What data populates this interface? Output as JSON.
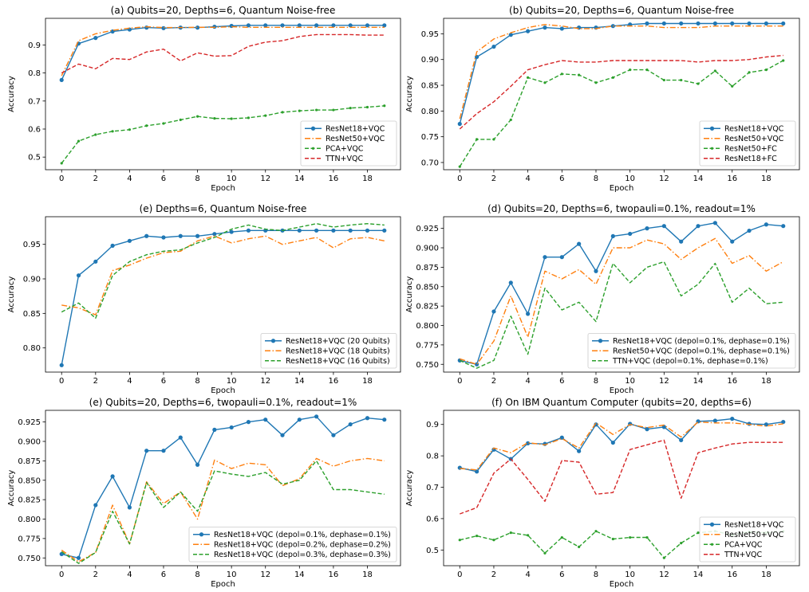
{
  "chart_data": [
    {
      "type": "line",
      "title": "(a) Qubits=20, Depths=6, Quantum Noise-free",
      "xlabel": "Epoch",
      "ylabel": "Accuracy",
      "xlim": [
        -0.95,
        19.95
      ],
      "ylim": [
        0.455,
        0.995
      ],
      "xticks": [
        0,
        2,
        4,
        6,
        8,
        10,
        12,
        14,
        16,
        18
      ],
      "yticks": [
        0.5,
        0.6,
        0.7,
        0.8,
        0.9
      ],
      "ytick_labels": [
        "0.5",
        "0.6",
        "0.7",
        "0.8",
        "0.9"
      ],
      "grid": false,
      "legend": "lower-right",
      "x": [
        0,
        1,
        2,
        3,
        4,
        5,
        6,
        7,
        8,
        9,
        10,
        11,
        12,
        13,
        14,
        15,
        16,
        17,
        18,
        19
      ],
      "series": [
        {
          "name": "ResNet18+VQC",
          "color": "#1f77b4",
          "style": "solid",
          "marker": "o",
          "values": [
            0.775,
            0.905,
            0.925,
            0.948,
            0.955,
            0.962,
            0.96,
            0.962,
            0.962,
            0.965,
            0.968,
            0.97,
            0.97,
            0.97,
            0.97,
            0.97,
            0.97,
            0.97,
            0.97,
            0.97
          ]
        },
        {
          "name": "ResNet50+VQC",
          "color": "#ff7f0e",
          "style": "dashdot",
          "marker": "",
          "values": [
            0.79,
            0.915,
            0.94,
            0.952,
            0.96,
            0.965,
            0.962,
            0.962,
            0.963,
            0.963,
            0.965,
            0.963,
            0.963,
            0.963,
            0.963,
            0.963,
            0.963,
            0.963,
            0.963,
            0.963
          ]
        },
        {
          "name": "PCA+VQC",
          "color": "#2ca02c",
          "style": "dashed",
          "marker": ".",
          "values": [
            0.478,
            0.557,
            0.58,
            0.592,
            0.598,
            0.612,
            0.62,
            0.633,
            0.645,
            0.638,
            0.637,
            0.64,
            0.648,
            0.66,
            0.665,
            0.668,
            0.668,
            0.675,
            0.678,
            0.683
          ]
        },
        {
          "name": "TTN+VQC",
          "color": "#d62728",
          "style": "dashed",
          "marker": "",
          "values": [
            0.8,
            0.832,
            0.815,
            0.852,
            0.848,
            0.875,
            0.885,
            0.843,
            0.872,
            0.86,
            0.862,
            0.895,
            0.91,
            0.915,
            0.93,
            0.937,
            0.937,
            0.937,
            0.935,
            0.935
          ]
        }
      ]
    },
    {
      "type": "line",
      "title": "(b) Qubits=20, Depths=6, Quantum Noise-free",
      "xlabel": "Epoch",
      "ylabel": "Accuracy",
      "xlim": [
        -0.95,
        19.95
      ],
      "ylim": [
        0.686,
        0.98
      ],
      "xticks": [
        0,
        2,
        4,
        6,
        8,
        10,
        12,
        14,
        16,
        18
      ],
      "yticks": [
        0.7,
        0.75,
        0.8,
        0.85,
        0.9,
        0.95
      ],
      "ytick_labels": [
        "0.70",
        "0.75",
        "0.80",
        "0.85",
        "0.90",
        "0.95"
      ],
      "grid": false,
      "legend": "lower-right",
      "x": [
        0,
        1,
        2,
        3,
        4,
        5,
        6,
        7,
        8,
        9,
        10,
        11,
        12,
        13,
        14,
        15,
        16,
        17,
        18,
        19
      ],
      "series": [
        {
          "name": "ResNet18+VQC",
          "color": "#1f77b4",
          "style": "solid",
          "marker": "o",
          "values": [
            0.775,
            0.905,
            0.925,
            0.948,
            0.955,
            0.962,
            0.96,
            0.962,
            0.962,
            0.965,
            0.968,
            0.97,
            0.97,
            0.97,
            0.97,
            0.97,
            0.97,
            0.97,
            0.97,
            0.97
          ]
        },
        {
          "name": "ResNet50+VQC",
          "color": "#ff7f0e",
          "style": "dashdot",
          "marker": "",
          "values": [
            0.785,
            0.915,
            0.94,
            0.952,
            0.962,
            0.968,
            0.965,
            0.96,
            0.96,
            0.965,
            0.965,
            0.965,
            0.962,
            0.962,
            0.962,
            0.965,
            0.965,
            0.965,
            0.965,
            0.965
          ]
        },
        {
          "name": "ResNet50+FC",
          "color": "#2ca02c",
          "style": "dashed",
          "marker": ".",
          "values": [
            0.692,
            0.745,
            0.745,
            0.783,
            0.865,
            0.855,
            0.872,
            0.87,
            0.855,
            0.865,
            0.88,
            0.88,
            0.86,
            0.86,
            0.853,
            0.878,
            0.848,
            0.875,
            0.88,
            0.898
          ]
        },
        {
          "name": "ResNet18+FC",
          "color": "#d62728",
          "style": "dashed",
          "marker": "",
          "values": [
            0.765,
            0.795,
            0.818,
            0.848,
            0.88,
            0.89,
            0.898,
            0.895,
            0.895,
            0.898,
            0.898,
            0.898,
            0.898,
            0.898,
            0.895,
            0.898,
            0.898,
            0.9,
            0.905,
            0.908
          ]
        }
      ]
    },
    {
      "type": "line",
      "title": "(e) Depths=6, Quantum Noise-free",
      "xlabel": "Epoch",
      "ylabel": "Accuracy",
      "xlim": [
        -0.95,
        19.95
      ],
      "ylim": [
        0.765,
        0.99
      ],
      "xticks": [
        0,
        2,
        4,
        6,
        8,
        10,
        12,
        14,
        16,
        18
      ],
      "yticks": [
        0.8,
        0.85,
        0.9,
        0.95
      ],
      "ytick_labels": [
        "0.80",
        "0.85",
        "0.90",
        "0.95"
      ],
      "grid": false,
      "legend": "lower-right",
      "x": [
        0,
        1,
        2,
        3,
        4,
        5,
        6,
        7,
        8,
        9,
        10,
        11,
        12,
        13,
        14,
        15,
        16,
        17,
        18,
        19
      ],
      "series": [
        {
          "name": "ResNet18+VQC (20 Qubits)",
          "color": "#1f77b4",
          "style": "solid",
          "marker": "o",
          "values": [
            0.775,
            0.905,
            0.925,
            0.948,
            0.955,
            0.962,
            0.96,
            0.962,
            0.962,
            0.965,
            0.968,
            0.97,
            0.97,
            0.97,
            0.97,
            0.97,
            0.97,
            0.97,
            0.97,
            0.97
          ]
        },
        {
          "name": "ResNet18+VQC (18 Qubits)",
          "color": "#ff7f0e",
          "style": "dashdot",
          "marker": "",
          "values": [
            0.862,
            0.858,
            0.848,
            0.912,
            0.92,
            0.93,
            0.938,
            0.94,
            0.955,
            0.962,
            0.952,
            0.958,
            0.962,
            0.95,
            0.955,
            0.96,
            0.945,
            0.958,
            0.96,
            0.955
          ]
        },
        {
          "name": "ResNet18+VQC (16 Qubits)",
          "color": "#2ca02c",
          "style": "dashed",
          "marker": "",
          "values": [
            0.852,
            0.865,
            0.843,
            0.905,
            0.925,
            0.935,
            0.94,
            0.942,
            0.952,
            0.96,
            0.972,
            0.978,
            0.972,
            0.97,
            0.975,
            0.98,
            0.975,
            0.978,
            0.98,
            0.978
          ]
        }
      ]
    },
    {
      "type": "line",
      "title": "(d) Qubits=20, Depths=6, twopauli=0.1%, readout=1%",
      "xlabel": "Epoch",
      "ylabel": "Accuracy",
      "xlim": [
        -0.95,
        19.95
      ],
      "ylim": [
        0.74,
        0.94
      ],
      "xticks": [
        0,
        2,
        4,
        6,
        8,
        10,
        12,
        14,
        16,
        18
      ],
      "yticks": [
        0.75,
        0.775,
        0.8,
        0.825,
        0.85,
        0.875,
        0.9,
        0.925
      ],
      "ytick_labels": [
        "0.750",
        "0.775",
        "0.800",
        "0.825",
        "0.850",
        "0.875",
        "0.900",
        "0.925"
      ],
      "grid": false,
      "legend": "lower-right",
      "x": [
        0,
        1,
        2,
        3,
        4,
        5,
        6,
        7,
        8,
        9,
        10,
        11,
        12,
        13,
        14,
        15,
        16,
        17,
        18,
        19
      ],
      "series": [
        {
          "name": "ResNet18+VQC (depol=0.1%, dephase=0.1%)",
          "color": "#1f77b4",
          "style": "solid",
          "marker": "o",
          "values": [
            0.755,
            0.75,
            0.818,
            0.855,
            0.815,
            0.888,
            0.888,
            0.905,
            0.87,
            0.915,
            0.918,
            0.925,
            0.928,
            0.908,
            0.928,
            0.932,
            0.908,
            0.922,
            0.93,
            0.928
          ]
        },
        {
          "name": "ResNet50+VQC (depol=0.1%, dephase=0.1%)",
          "color": "#ff7f0e",
          "style": "dashdot",
          "marker": "",
          "values": [
            0.757,
            0.75,
            0.78,
            0.838,
            0.785,
            0.87,
            0.86,
            0.872,
            0.853,
            0.9,
            0.9,
            0.91,
            0.905,
            0.885,
            0.9,
            0.912,
            0.88,
            0.89,
            0.87,
            0.882
          ]
        },
        {
          "name": "TTN+VQC (depol=0.1%, dephase=0.1%)",
          "color": "#2ca02c",
          "style": "dashed",
          "marker": "",
          "values": [
            0.755,
            0.745,
            0.755,
            0.812,
            0.763,
            0.848,
            0.82,
            0.83,
            0.805,
            0.88,
            0.855,
            0.875,
            0.882,
            0.838,
            0.853,
            0.88,
            0.83,
            0.848,
            0.828,
            0.83
          ]
        }
      ]
    },
    {
      "type": "line",
      "title": "(e) Qubits=20, Depths=6, twopauli=0.1%, readout=1%",
      "xlabel": "Epoch",
      "ylabel": "Accuracy",
      "xlim": [
        -0.95,
        19.95
      ],
      "ylim": [
        0.74,
        0.94
      ],
      "xticks": [
        0,
        2,
        4,
        6,
        8,
        10,
        12,
        14,
        16,
        18
      ],
      "yticks": [
        0.75,
        0.775,
        0.8,
        0.825,
        0.85,
        0.875,
        0.9,
        0.925
      ],
      "ytick_labels": [
        "0.750",
        "0.775",
        "0.800",
        "0.825",
        "0.850",
        "0.875",
        "0.900",
        "0.925"
      ],
      "grid": false,
      "legend": "lower-right",
      "x": [
        0,
        1,
        2,
        3,
        4,
        5,
        6,
        7,
        8,
        9,
        10,
        11,
        12,
        13,
        14,
        15,
        16,
        17,
        18,
        19
      ],
      "series": [
        {
          "name": "ResNet18+VQC (depol=0.1%, dephase=0.1%)",
          "color": "#1f77b4",
          "style": "solid",
          "marker": "o",
          "values": [
            0.755,
            0.75,
            0.818,
            0.855,
            0.815,
            0.888,
            0.888,
            0.905,
            0.87,
            0.915,
            0.918,
            0.925,
            0.928,
            0.908,
            0.928,
            0.932,
            0.908,
            0.922,
            0.93,
            0.928
          ]
        },
        {
          "name": "ResNet18+VQC (depol=0.2%, dephase=0.2%)",
          "color": "#ff7f0e",
          "style": "dashdot",
          "marker": "",
          "values": [
            0.76,
            0.745,
            0.757,
            0.818,
            0.768,
            0.848,
            0.82,
            0.835,
            0.8,
            0.876,
            0.865,
            0.872,
            0.87,
            0.843,
            0.852,
            0.878,
            0.868,
            0.875,
            0.878,
            0.875
          ]
        },
        {
          "name": "ResNet18+VQC (depol=0.3%, dephase=0.3%)",
          "color": "#2ca02c",
          "style": "dashed",
          "marker": "",
          "values": [
            0.758,
            0.743,
            0.757,
            0.81,
            0.768,
            0.847,
            0.815,
            0.835,
            0.81,
            0.862,
            0.858,
            0.855,
            0.86,
            0.845,
            0.85,
            0.875,
            0.838,
            0.838,
            0.835,
            0.832
          ]
        }
      ]
    },
    {
      "type": "line",
      "title": "(f) On IBM Quantum Computer (qubits=20, depths=6)",
      "xlabel": "Epoch",
      "ylabel": "Accuracy",
      "xlim": [
        -0.95,
        19.95
      ],
      "ylim": [
        0.45,
        0.945
      ],
      "xticks": [
        0,
        2,
        4,
        6,
        8,
        10,
        12,
        14,
        16,
        18
      ],
      "yticks": [
        0.5,
        0.6,
        0.7,
        0.8,
        0.9
      ],
      "ytick_labels": [
        "0.5",
        "0.6",
        "0.7",
        "0.8",
        "0.9"
      ],
      "grid": false,
      "legend": "lower-right",
      "x": [
        0,
        1,
        2,
        3,
        4,
        5,
        6,
        7,
        8,
        9,
        10,
        11,
        12,
        13,
        14,
        15,
        16,
        17,
        18,
        19
      ],
      "series": [
        {
          "name": "ResNet18+VQC",
          "color": "#1f77b4",
          "style": "solid",
          "marker": "o",
          "values": [
            0.762,
            0.75,
            0.82,
            0.79,
            0.84,
            0.838,
            0.858,
            0.815,
            0.9,
            0.842,
            0.902,
            0.885,
            0.892,
            0.85,
            0.91,
            0.912,
            0.918,
            0.902,
            0.9,
            0.908
          ]
        },
        {
          "name": "ResNet50+VQC",
          "color": "#ff7f0e",
          "style": "dashdot",
          "marker": "",
          "values": [
            0.76,
            0.755,
            0.825,
            0.81,
            0.842,
            0.835,
            0.855,
            0.825,
            0.905,
            0.868,
            0.9,
            0.89,
            0.898,
            0.86,
            0.908,
            0.905,
            0.905,
            0.9,
            0.895,
            0.902
          ]
        },
        {
          "name": "PCA+VQC",
          "color": "#2ca02c",
          "style": "dashed",
          "marker": ".",
          "values": [
            0.532,
            0.545,
            0.532,
            0.555,
            0.547,
            0.49,
            0.54,
            0.51,
            0.56,
            0.535,
            0.54,
            0.54,
            0.475,
            0.522,
            0.555,
            0.56,
            0.548,
            0.558,
            0.555,
            0.56
          ]
        },
        {
          "name": "TTN+VQC",
          "color": "#d62728",
          "style": "dashed",
          "marker": "",
          "values": [
            0.615,
            0.635,
            0.745,
            0.79,
            0.725,
            0.655,
            0.785,
            0.78,
            0.678,
            0.683,
            0.82,
            0.835,
            0.85,
            0.665,
            0.81,
            0.825,
            0.838,
            0.843,
            0.843,
            0.843
          ]
        }
      ]
    }
  ]
}
